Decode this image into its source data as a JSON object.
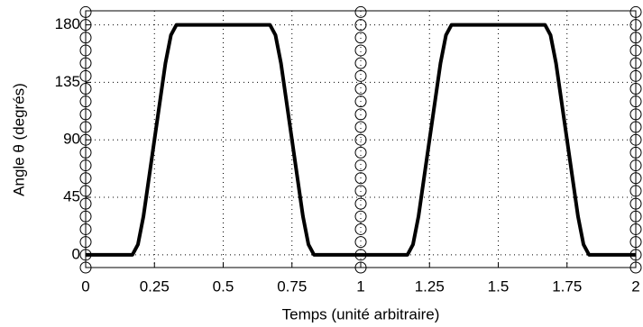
{
  "chart_data": {
    "type": "line",
    "xlabel": "Temps (unité arbitraire)",
    "ylabel": "Angle θ (degrés)",
    "xlim": [
      0,
      2
    ],
    "ylim": [
      -10,
      191
    ],
    "xticks": [
      0,
      0.25,
      0.5,
      0.75,
      1,
      1.25,
      1.5,
      1.75,
      2
    ],
    "yticks": [
      0,
      45,
      90,
      135,
      180
    ],
    "grid": true,
    "series": [
      {
        "style": "line",
        "color": "#000000",
        "x": [
          0,
          0.15,
          0.17,
          0.19,
          0.21,
          0.25,
          0.29,
          0.31,
          0.33,
          0.67,
          0.69,
          0.71,
          0.75,
          0.79,
          0.81,
          0.83,
          0.85,
          1.15,
          1.17,
          1.19,
          1.21,
          1.25,
          1.29,
          1.31,
          1.33,
          1.67,
          1.69,
          1.71,
          1.75,
          1.79,
          1.81,
          1.83,
          2
        ],
        "values": [
          0,
          0,
          0,
          8,
          30,
          90,
          150,
          172,
          180,
          180,
          172,
          150,
          90,
          30,
          8,
          0,
          0,
          0,
          0,
          8,
          30,
          90,
          150,
          172,
          180,
          180,
          172,
          150,
          90,
          30,
          8,
          0,
          0
        ]
      },
      {
        "style": "markers",
        "color": "#000000",
        "x": [
          0,
          0,
          0,
          0,
          0,
          0,
          0,
          0,
          0,
          0,
          0,
          0,
          0,
          0,
          0,
          0,
          0,
          0,
          0,
          0,
          0,
          1,
          1,
          1,
          1,
          1,
          1,
          1,
          1,
          1,
          1,
          1,
          1,
          1,
          1,
          1,
          1,
          1,
          1,
          1,
          1,
          1,
          2,
          2,
          2,
          2,
          2,
          2,
          2,
          2,
          2,
          2,
          2,
          2,
          2,
          2,
          2,
          2,
          2,
          2,
          2,
          2,
          2
        ],
        "values": [
          -10,
          0,
          10,
          20,
          30,
          40,
          50,
          60,
          70,
          80,
          90,
          100,
          110,
          120,
          130,
          140,
          150,
          160,
          170,
          180,
          190,
          -10,
          0,
          10,
          20,
          30,
          40,
          50,
          60,
          70,
          80,
          90,
          100,
          110,
          120,
          130,
          140,
          150,
          160,
          170,
          180,
          190,
          -10,
          0,
          10,
          20,
          30,
          40,
          50,
          60,
          70,
          80,
          90,
          100,
          110,
          120,
          130,
          140,
          150,
          160,
          170,
          180,
          190
        ]
      }
    ]
  }
}
